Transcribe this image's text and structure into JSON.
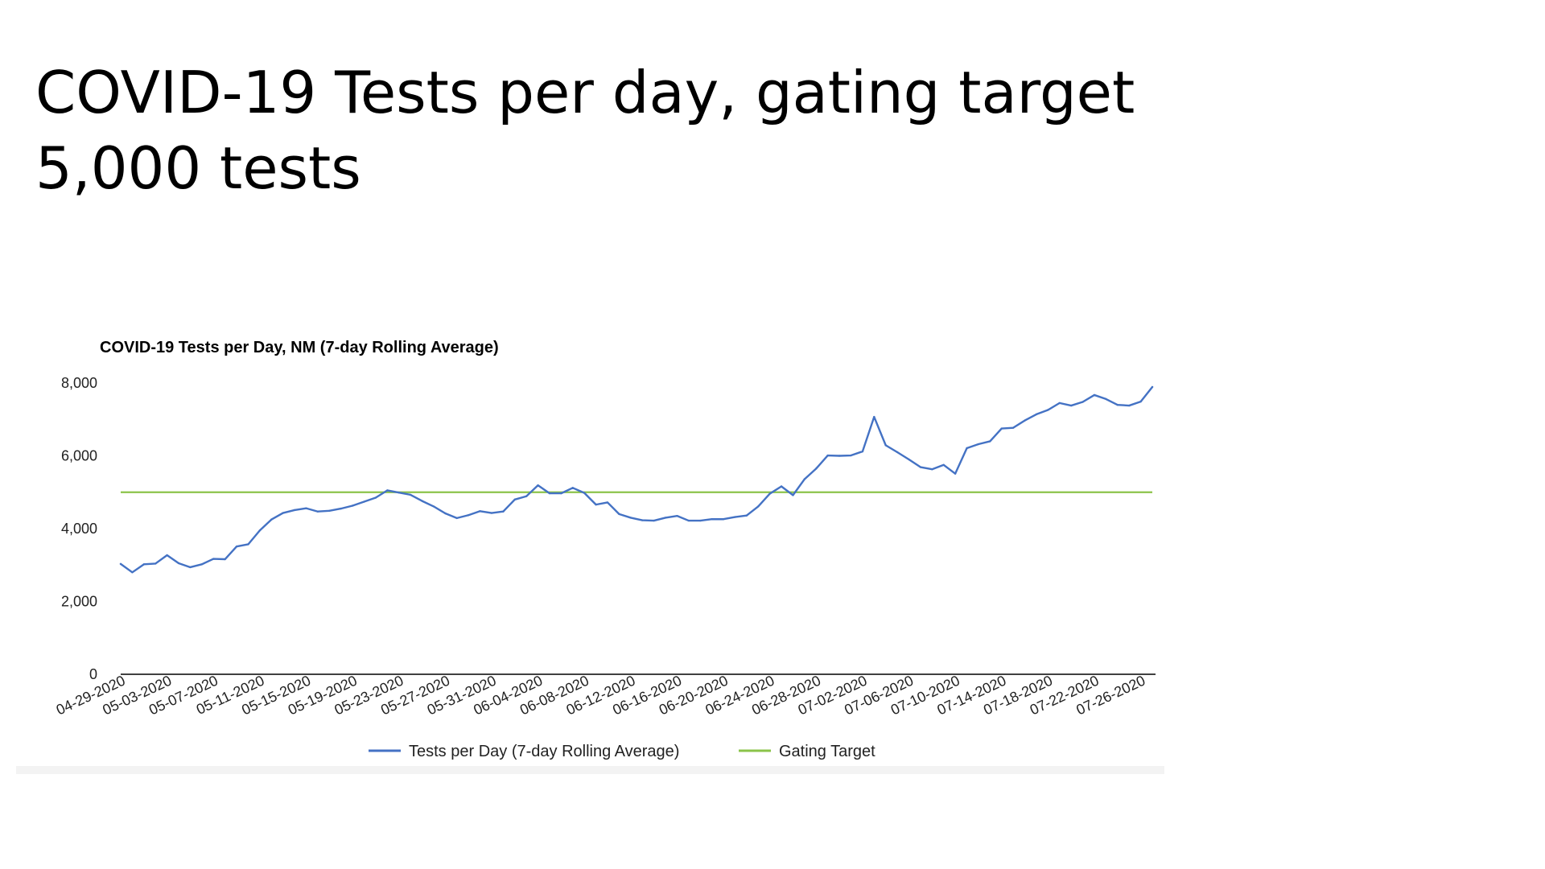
{
  "slide": {
    "title": "COVID-19 Tests per day, gating target 5,000 tests"
  },
  "colors": {
    "series_line": "#4472c4",
    "target_line": "#8bc34a",
    "axis_line": "#000000"
  },
  "chart_data": {
    "type": "line",
    "title": "COVID-19 Tests per Day, NM (7-day Rolling Average)",
    "xlabel": "",
    "ylabel": "",
    "ylim": [
      0,
      8000
    ],
    "y_ticks": [
      0,
      2000,
      4000,
      6000,
      8000
    ],
    "y_tick_labels": [
      "0",
      "2,000",
      "4,000",
      "6,000",
      "8,000"
    ],
    "grid": false,
    "legend_position": "bottom",
    "x": [
      "04-29-2020",
      "04-30-2020",
      "05-01-2020",
      "05-02-2020",
      "05-03-2020",
      "05-04-2020",
      "05-05-2020",
      "05-06-2020",
      "05-07-2020",
      "05-08-2020",
      "05-09-2020",
      "05-10-2020",
      "05-11-2020",
      "05-12-2020",
      "05-13-2020",
      "05-14-2020",
      "05-15-2020",
      "05-16-2020",
      "05-17-2020",
      "05-18-2020",
      "05-19-2020",
      "05-20-2020",
      "05-21-2020",
      "05-22-2020",
      "05-23-2020",
      "05-24-2020",
      "05-25-2020",
      "05-26-2020",
      "05-27-2020",
      "05-28-2020",
      "05-29-2020",
      "05-30-2020",
      "05-31-2020",
      "06-01-2020",
      "06-02-2020",
      "06-03-2020",
      "06-04-2020",
      "06-05-2020",
      "06-06-2020",
      "06-07-2020",
      "06-08-2020",
      "06-09-2020",
      "06-10-2020",
      "06-11-2020",
      "06-12-2020",
      "06-13-2020",
      "06-14-2020",
      "06-15-2020",
      "06-16-2020",
      "06-17-2020",
      "06-18-2020",
      "06-19-2020",
      "06-20-2020",
      "06-21-2020",
      "06-22-2020",
      "06-23-2020",
      "06-24-2020",
      "06-25-2020",
      "06-26-2020",
      "06-27-2020",
      "06-28-2020",
      "06-29-2020",
      "06-30-2020",
      "07-01-2020",
      "07-02-2020",
      "07-03-2020",
      "07-04-2020",
      "07-05-2020",
      "07-06-2020",
      "07-07-2020",
      "07-08-2020",
      "07-09-2020",
      "07-10-2020",
      "07-11-2020",
      "07-12-2020",
      "07-13-2020",
      "07-14-2020",
      "07-15-2020",
      "07-16-2020",
      "07-17-2020",
      "07-18-2020",
      "07-19-2020",
      "07-20-2020",
      "07-21-2020",
      "07-22-2020",
      "07-23-2020",
      "07-24-2020",
      "07-25-2020",
      "07-26-2020",
      "07-27-2020"
    ],
    "x_tick_labels": [
      "04-29-2020",
      "05-03-2020",
      "05-07-2020",
      "05-11-2020",
      "05-15-2020",
      "05-19-2020",
      "05-23-2020",
      "05-27-2020",
      "05-31-2020",
      "06-04-2020",
      "06-08-2020",
      "06-12-2020",
      "06-16-2020",
      "06-20-2020",
      "06-24-2020",
      "06-28-2020",
      "07-02-2020",
      "07-06-2020",
      "07-10-2020",
      "07-14-2020",
      "07-18-2020",
      "07-22-2020",
      "07-26-2020"
    ],
    "series": [
      {
        "name": "Tests per Day (7-day Rolling Average)",
        "values": [
          3030,
          2800,
          3020,
          3040,
          3270,
          3050,
          2940,
          3020,
          3170,
          3160,
          3510,
          3570,
          3950,
          4250,
          4430,
          4510,
          4560,
          4470,
          4490,
          4550,
          4630,
          4740,
          4850,
          5050,
          4990,
          4930,
          4760,
          4610,
          4420,
          4290,
          4370,
          4480,
          4430,
          4470,
          4800,
          4890,
          5190,
          4970,
          4970,
          5120,
          4980,
          4660,
          4720,
          4400,
          4300,
          4230,
          4220,
          4300,
          4350,
          4220,
          4220,
          4260,
          4260,
          4320,
          4360,
          4610,
          4960,
          5160,
          4920,
          5360,
          5650,
          6010,
          6000,
          6010,
          6120,
          7070,
          6290,
          6100,
          5900,
          5690,
          5630,
          5750,
          5510,
          6210,
          6320,
          6400,
          6750,
          6770,
          6970,
          7140,
          7260,
          7450,
          7380,
          7480,
          7670,
          7560,
          7400,
          7380,
          7490,
          7890
        ]
      },
      {
        "name": "Gating Target",
        "constant": 5000
      }
    ]
  }
}
